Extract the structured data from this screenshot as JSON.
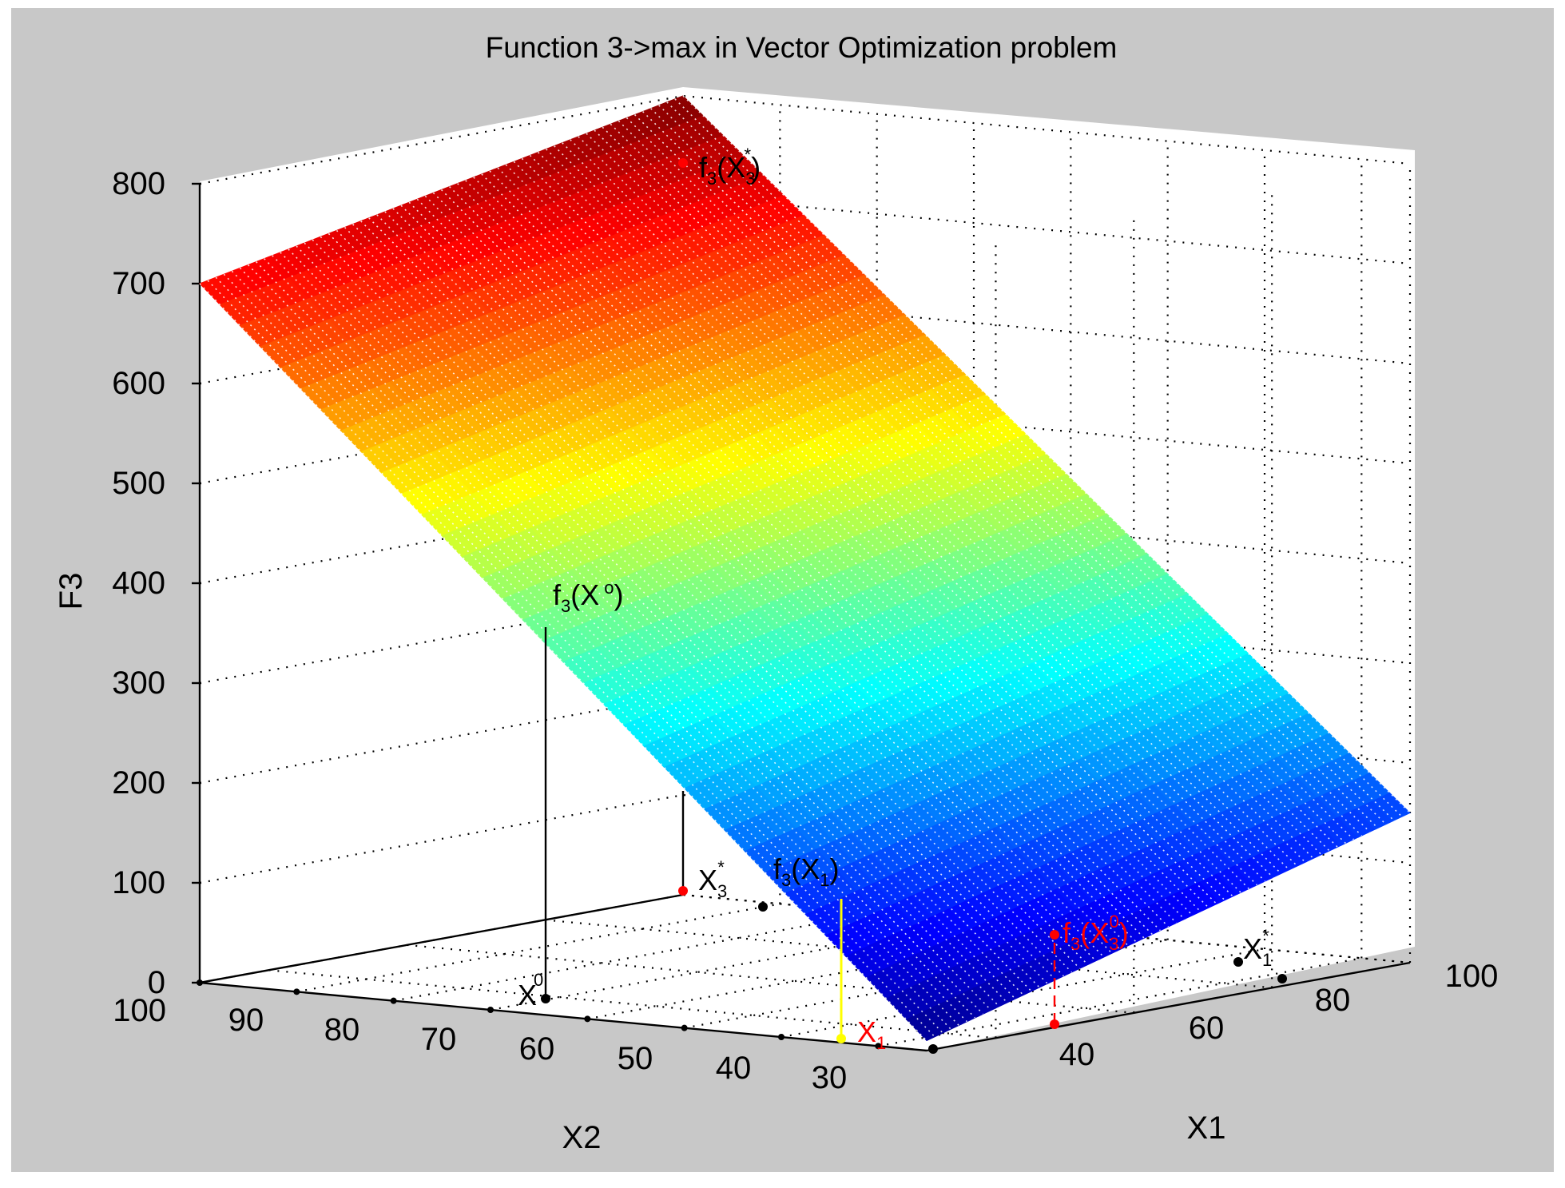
{
  "chart_data": {
    "type": "surface3d",
    "title": "Function 3->max in Vector Optimization problem",
    "xlabel": "X1",
    "ylabel": "X2",
    "zlabel": "F3",
    "xlim": [
      30,
      100
    ],
    "ylim": [
      25,
      100
    ],
    "zlim": [
      0,
      800
    ],
    "x_ticks": [
      "40",
      "60",
      "80",
      "100"
    ],
    "y_ticks": [
      "100",
      "90",
      "80",
      "70",
      "60",
      "50",
      "40",
      "30"
    ],
    "z_ticks": [
      "0",
      "100",
      "200",
      "300",
      "400",
      "500",
      "600",
      "700",
      "800"
    ],
    "colormap": "jet",
    "grid": true,
    "surface_corners": [
      {
        "x1": 30,
        "x2": 100,
        "f3": 700
      },
      {
        "x1": 100,
        "x2": 100,
        "f3": 800
      },
      {
        "x1": 100,
        "x2": 25,
        "f3": 150
      },
      {
        "x1": 30,
        "x2": 25,
        "f3": 10
      }
    ],
    "annotations": [
      {
        "main": "f",
        "sub": "3",
        "text": "(X",
        "sub2": "3",
        "sup": "*",
        "tail": ")",
        "color": "#000000"
      },
      {
        "main": "f",
        "sub": "3",
        "text": "(X",
        "sub2": "",
        "sup": "o",
        "tail": ")",
        "color": "#000000"
      },
      {
        "main": "X",
        "sub": "3",
        "sup": "*",
        "color": "#000000"
      },
      {
        "main": "f",
        "sub": "3",
        "text": "(X",
        "sub2": "1",
        "sup": "",
        "tail": ")",
        "color": "#000000"
      },
      {
        "main": "f",
        "sub": "3",
        "text": "(X",
        "sub2": "3",
        "sup": "0",
        "tail": ")",
        "color": "#ff0000"
      },
      {
        "main": "X",
        "sub": "1",
        "sup": "*",
        "color": "#000000"
      },
      {
        "main": "X",
        "sub": "",
        "sup": "0",
        "color": "#000000"
      },
      {
        "main": "X",
        "sub": "1",
        "sup": "",
        "color": "#ff0000"
      }
    ],
    "colors": {
      "figure_bg": "#c8c8c8",
      "axes_bg": "#ffffff",
      "marker_red": "#ff0000",
      "marker_black": "#000000",
      "line_yellow": "#ffff00"
    }
  }
}
